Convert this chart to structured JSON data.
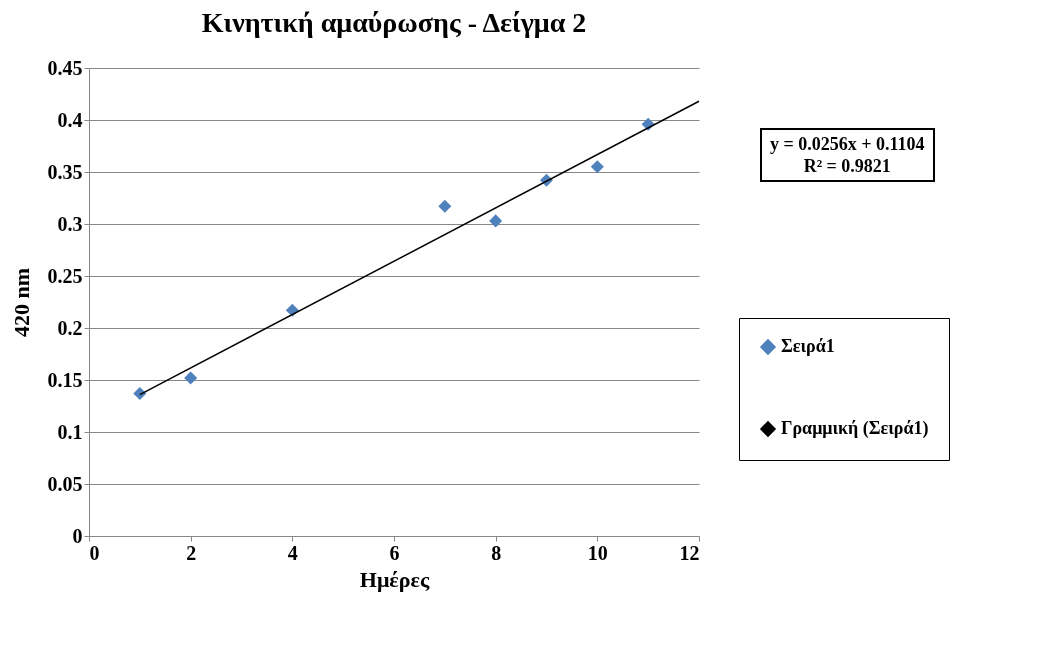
{
  "chart_data": {
    "type": "scatter",
    "title": "Κινητική αμαύρωσης - Δείγμα 2",
    "xlabel": "Ημέρες",
    "ylabel": "420 nm",
    "annotations": [
      "y = 0.0256x + 0.1104",
      "R² = 0.9821"
    ],
    "series": [
      {
        "name": "Σειρά1",
        "color": "#4f81bd",
        "marker": "diamond",
        "x": [
          1,
          2,
          4,
          7,
          8,
          9,
          10,
          11
        ],
        "values": [
          0.137,
          0.152,
          0.217,
          0.317,
          0.303,
          0.342,
          0.355,
          0.396
        ]
      },
      {
        "name": "Γραμμική (Σειρά1)",
        "type": "line",
        "color": "#000000",
        "marker": "none",
        "x": [
          1,
          12
        ],
        "values": [
          0.136,
          0.418
        ]
      }
    ],
    "xlim": [
      0,
      12
    ],
    "xticks": [
      0,
      2,
      4,
      6,
      8,
      10,
      12
    ],
    "ylim": [
      0,
      0.45
    ],
    "yticks": [
      0,
      0.05,
      0.1,
      0.15,
      0.2,
      0.25,
      0.3,
      0.35,
      0.4,
      0.45
    ],
    "grid": "y",
    "legend": "right",
    "line_style": "solid"
  }
}
